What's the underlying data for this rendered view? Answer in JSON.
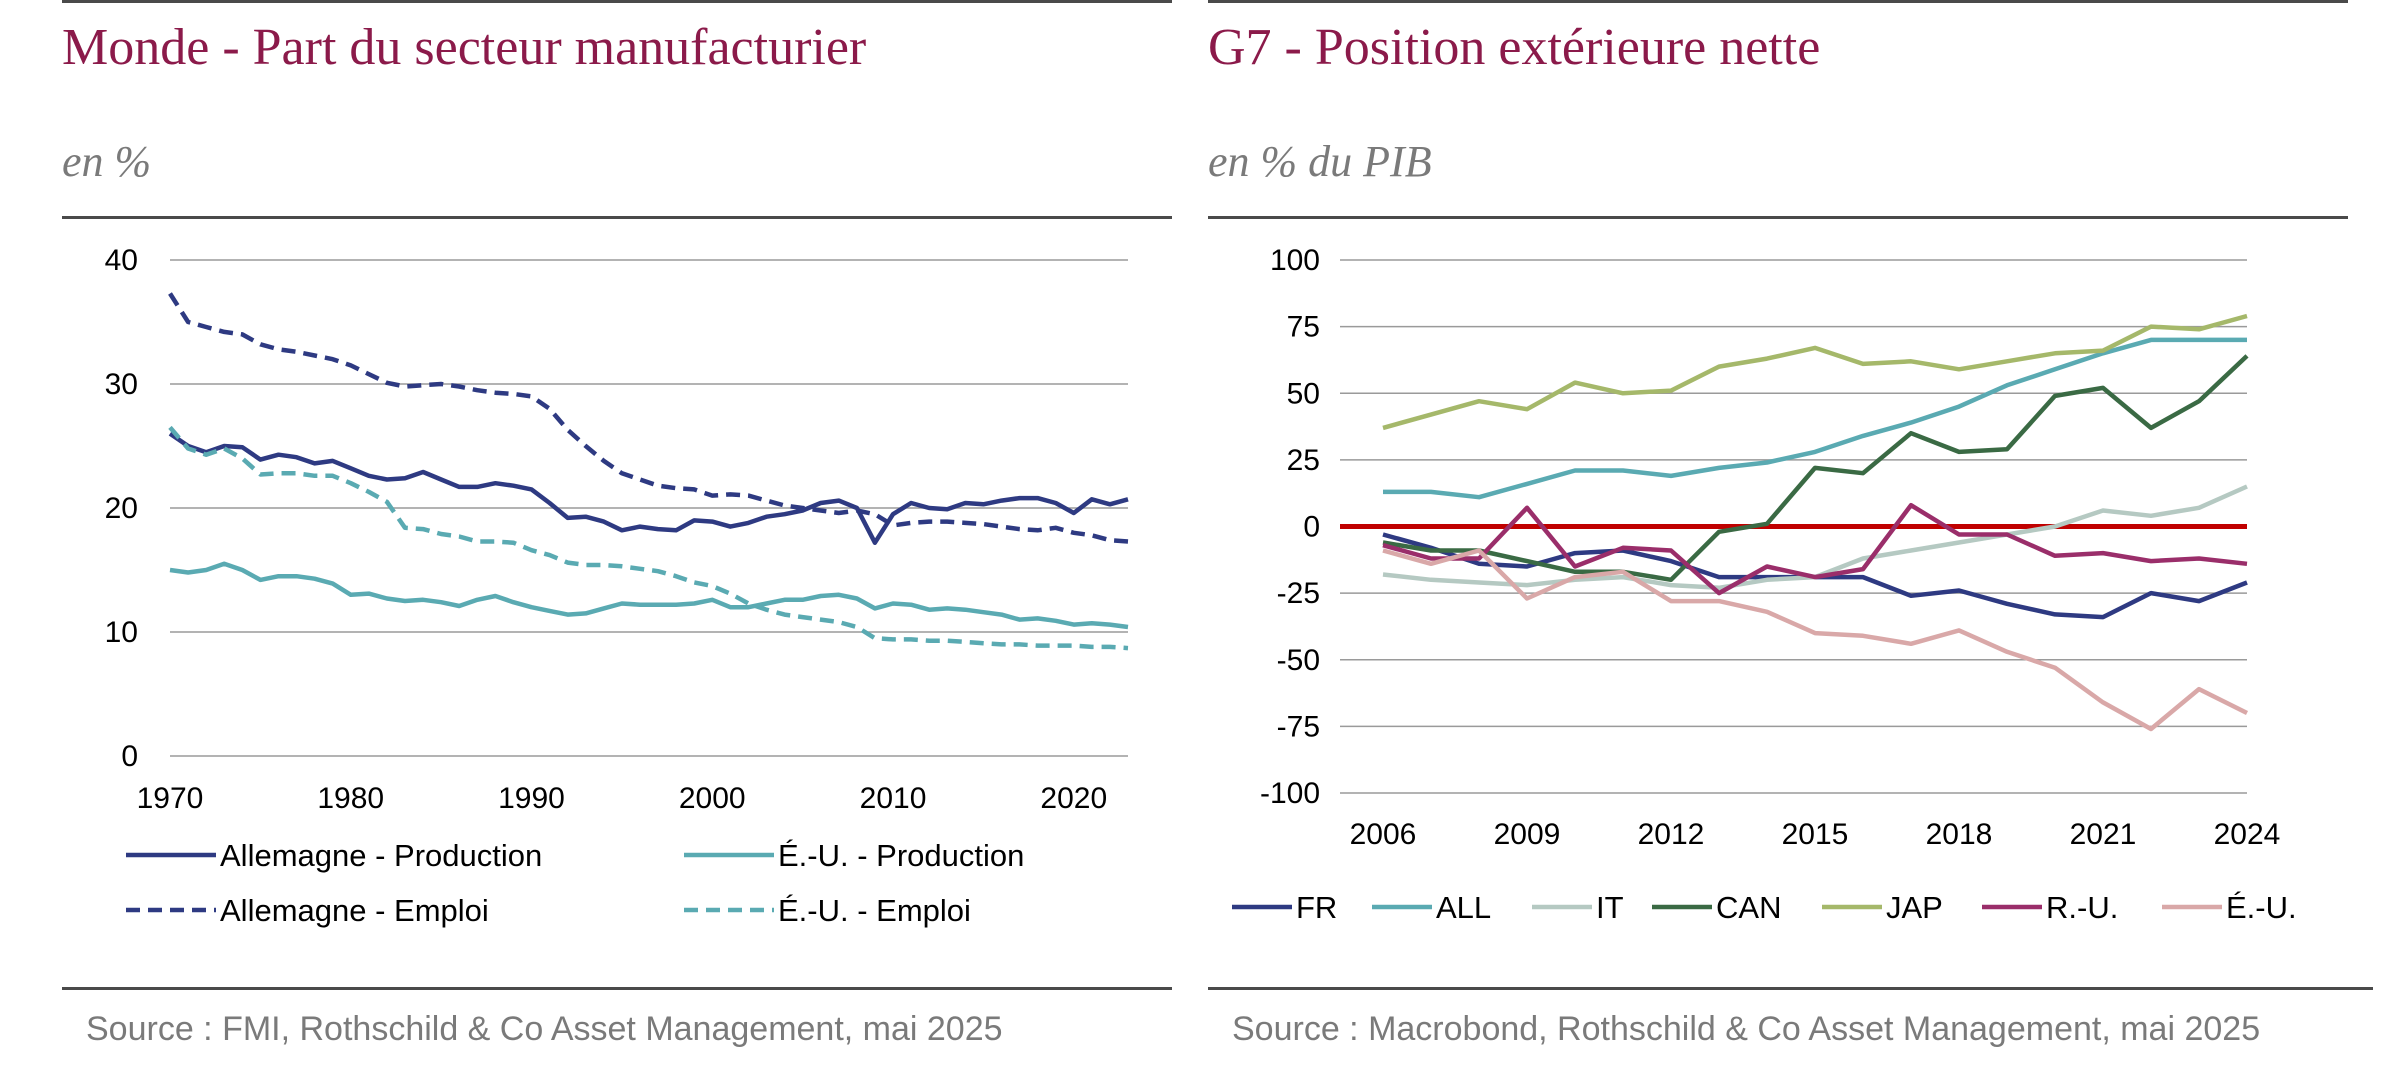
{
  "colors": {
    "title": "#8b1a4a",
    "rule": "#4a4a4a",
    "grid": "#9a9a9a",
    "subtle_text": "#7a7a7a",
    "zero_line": "#c00000"
  },
  "left": {
    "title": "Monde - Part du secteur manufacturier",
    "subtitle": "en %",
    "source": "Source : FMI, Rothschild & Co Asset Management, mai 2025"
  },
  "right": {
    "title": "G7 - Position extérieure nette",
    "subtitle": "en % du PIB",
    "source": "Source : Macrobond, Rothschild & Co Asset Management, mai 2025"
  },
  "chart_data": [
    {
      "type": "line",
      "title": "Monde - Part du secteur manufacturier",
      "subtitle": "en %",
      "ylim": [
        0,
        40
      ],
      "yticks": [
        0,
        10,
        20,
        30,
        40
      ],
      "xlim": [
        1970,
        2023
      ],
      "xticks": [
        1970,
        1980,
        1990,
        2000,
        2010,
        2020
      ],
      "grid": true,
      "legend": "bottom",
      "x": [
        1970,
        1971,
        1972,
        1973,
        1974,
        1975,
        1976,
        1977,
        1978,
        1979,
        1980,
        1981,
        1982,
        1983,
        1984,
        1985,
        1986,
        1987,
        1988,
        1989,
        1990,
        1991,
        1992,
        1993,
        1994,
        1995,
        1996,
        1997,
        1998,
        1999,
        2000,
        2001,
        2002,
        2003,
        2004,
        2005,
        2006,
        2007,
        2008,
        2009,
        2010,
        2011,
        2012,
        2013,
        2014,
        2015,
        2016,
        2017,
        2018,
        2019,
        2020,
        2021,
        2022,
        2023
      ],
      "series": [
        {
          "name": "Allemagne - Production",
          "color": "#2e3a82",
          "dash": "solid",
          "values": [
            26.0,
            25.0,
            24.5,
            25.0,
            24.9,
            23.9,
            24.3,
            24.1,
            23.6,
            23.8,
            23.2,
            22.6,
            22.3,
            22.4,
            22.9,
            22.3,
            21.7,
            21.7,
            22.0,
            21.8,
            21.5,
            20.4,
            19.2,
            19.3,
            18.9,
            18.2,
            18.5,
            18.3,
            18.2,
            19.0,
            18.9,
            18.5,
            18.8,
            19.3,
            19.5,
            19.8,
            20.4,
            20.6,
            20.0,
            17.2,
            19.5,
            20.4,
            20.0,
            19.9,
            20.4,
            20.3,
            20.6,
            20.8,
            20.8,
            20.4,
            19.6,
            20.7,
            20.3,
            20.7
          ]
        },
        {
          "name": "Allemagne - Emploi",
          "color": "#2e3a82",
          "dash": "dash",
          "values": [
            37.3,
            35.0,
            34.6,
            34.2,
            34.0,
            33.2,
            32.8,
            32.6,
            32.3,
            32.0,
            31.5,
            30.8,
            30.1,
            29.8,
            29.9,
            30.0,
            29.8,
            29.5,
            29.3,
            29.2,
            29.0,
            28.0,
            26.3,
            25.0,
            23.8,
            22.8,
            22.3,
            21.8,
            21.6,
            21.5,
            21.0,
            21.1,
            21.0,
            20.6,
            20.2,
            20.0,
            19.8,
            19.6,
            19.8,
            19.5,
            18.6,
            18.8,
            18.9,
            18.9,
            18.8,
            18.7,
            18.5,
            18.3,
            18.2,
            18.4,
            18.0,
            17.8,
            17.4,
            17.3
          ]
        },
        {
          "name": "É.-U. - Production",
          "color": "#5aaab2",
          "dash": "solid",
          "values": [
            15.0,
            14.8,
            15.0,
            15.5,
            15.0,
            14.2,
            14.5,
            14.5,
            14.3,
            13.9,
            13.0,
            13.1,
            12.7,
            12.5,
            12.6,
            12.4,
            12.1,
            12.6,
            12.9,
            12.4,
            12.0,
            11.7,
            11.4,
            11.5,
            11.9,
            12.3,
            12.2,
            12.2,
            12.2,
            12.3,
            12.6,
            12.0,
            12.0,
            12.3,
            12.6,
            12.6,
            12.9,
            13.0,
            12.7,
            11.9,
            12.3,
            12.2,
            11.8,
            11.9,
            11.8,
            11.6,
            11.4,
            11.0,
            11.1,
            10.9,
            10.6,
            10.7,
            10.6,
            10.4
          ]
        },
        {
          "name": "É.-U. - Emploi",
          "color": "#5aaab2",
          "dash": "dash",
          "values": [
            26.5,
            24.8,
            24.3,
            24.8,
            24.0,
            22.7,
            22.8,
            22.8,
            22.6,
            22.6,
            22.0,
            21.3,
            20.5,
            18.4,
            18.3,
            17.9,
            17.7,
            17.3,
            17.3,
            17.2,
            16.6,
            16.2,
            15.6,
            15.4,
            15.4,
            15.3,
            15.1,
            14.9,
            14.5,
            14.0,
            13.7,
            13.1,
            12.3,
            11.8,
            11.4,
            11.2,
            11.0,
            10.8,
            10.4,
            9.5,
            9.4,
            9.4,
            9.3,
            9.3,
            9.2,
            9.1,
            9.0,
            9.0,
            8.9,
            8.9,
            8.9,
            8.8,
            8.8,
            8.7
          ]
        }
      ]
    },
    {
      "type": "line",
      "title": "G7 - Position extérieure nette",
      "subtitle": "en % du PIB",
      "ylim": [
        -100,
        100
      ],
      "yticks": [
        -100,
        -75,
        -50,
        -25,
        0,
        25,
        50,
        75,
        100
      ],
      "xlim": [
        2006,
        2024
      ],
      "xticks": [
        2006,
        2009,
        2012,
        2015,
        2018,
        2021,
        2024
      ],
      "grid": true,
      "zero_line": true,
      "legend": "bottom",
      "x": [
        2006,
        2007,
        2008,
        2009,
        2010,
        2011,
        2012,
        2013,
        2014,
        2015,
        2016,
        2017,
        2018,
        2019,
        2020,
        2021,
        2022,
        2023,
        2024
      ],
      "series": [
        {
          "name": "FR",
          "color": "#2e3a82",
          "values": [
            -3,
            -8,
            -14,
            -15,
            -10,
            -9,
            -13,
            -19,
            -19,
            -19,
            -19,
            -26,
            -24,
            -29,
            -33,
            -34,
            -25,
            -28,
            -21
          ]
        },
        {
          "name": "ALL",
          "color": "#5aaab2",
          "values": [
            13,
            13,
            11,
            16,
            21,
            21,
            19,
            22,
            24,
            28,
            34,
            39,
            45,
            53,
            59,
            65,
            70,
            70,
            70
          ]
        },
        {
          "name": "IT",
          "color": "#b5c9c2",
          "values": [
            -18,
            -20,
            -21,
            -22,
            -20,
            -19,
            -22,
            -23,
            -20,
            -19,
            -12,
            -9,
            -6,
            -3,
            0,
            6,
            4,
            7,
            15
          ]
        },
        {
          "name": "CAN",
          "color": "#3a6a44",
          "values": [
            -6,
            -9,
            -9,
            -13,
            -17,
            -17,
            -20,
            -2,
            1,
            22,
            20,
            35,
            28,
            29,
            49,
            52,
            37,
            47,
            64
          ]
        },
        {
          "name": "JAP",
          "color": "#a5b86a",
          "values": [
            37,
            42,
            47,
            44,
            54,
            50,
            51,
            60,
            63,
            67,
            61,
            62,
            59,
            62,
            65,
            66,
            75,
            74,
            79
          ]
        },
        {
          "name": "R.-U.",
          "color": "#9a2e6a",
          "values": [
            -7,
            -12,
            -12,
            7,
            -15,
            -8,
            -9,
            -25,
            -15,
            -19,
            -16,
            8,
            -3,
            -3,
            -11,
            -10,
            -13,
            -12,
            -14
          ]
        },
        {
          "name": "É.-U.",
          "color": "#d9a8a8",
          "values": [
            -9,
            -14,
            -9,
            -27,
            -19,
            -17,
            -28,
            -28,
            -32,
            -40,
            -41,
            -44,
            -39,
            -47,
            -53,
            -66,
            -76,
            -61,
            -70
          ]
        }
      ]
    }
  ]
}
